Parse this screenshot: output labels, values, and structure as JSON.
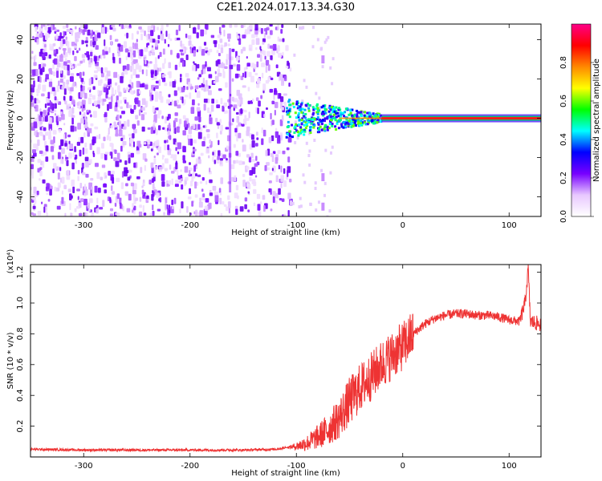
{
  "title": "C2E1.2024.017.13.34.G30",
  "chart_data": [
    {
      "type": "heatmap",
      "xlabel": "Height of straight line (km)",
      "ylabel": "Frequency (Hz)",
      "xlim": [
        -350,
        130
      ],
      "ylim": [
        -50,
        48
      ],
      "xticks": [
        -300,
        -200,
        -100,
        0,
        100
      ],
      "yticks": [
        -40,
        -20,
        0,
        20,
        40
      ],
      "grid": false,
      "colorbar": {
        "label": "Normalized spectral amplitude",
        "range": [
          0,
          1
        ],
        "ticks": [
          "0.0",
          "0.2",
          "0.4",
          "0.6",
          "0.8"
        ],
        "colors": [
          "#ffffff",
          "#e8c8ff",
          "#7700ff",
          "#0000ff",
          "#00ffff",
          "#00ff00",
          "#ffff00",
          "#ff8800",
          "#ff0000",
          "#ff0088"
        ]
      },
      "features": {
        "noise_extent_x": [
          -350,
          -105
        ],
        "signal_frequency_hz": 0,
        "signal_onset_x": -110,
        "strong_signal_from_x": -20
      }
    },
    {
      "type": "line",
      "xlabel": "Height of straight line (km)",
      "ylabel": "SNR (10 * v/v)",
      "scale_label": "(x10⁴)",
      "xlim": [
        -350,
        130
      ],
      "ylim": [
        0,
        1.25
      ],
      "xticks": [
        -300,
        -200,
        -100,
        0,
        100
      ],
      "yticks": [
        "0.2",
        "0.4",
        "0.6",
        "0.8",
        "1.0",
        "1.2"
      ],
      "grid": false,
      "series": [
        {
          "color": "#ee3333",
          "x": [
            -350,
            -300,
            -250,
            -200,
            -150,
            -120,
            -100,
            -90,
            -80,
            -70,
            -60,
            -50,
            -40,
            -30,
            -20,
            -10,
            0,
            10,
            20,
            30,
            40,
            50,
            60,
            70,
            80,
            90,
            100,
            110,
            115,
            118,
            120,
            125,
            130
          ],
          "y": [
            0.05,
            0.045,
            0.045,
            0.045,
            0.045,
            0.05,
            0.07,
            0.09,
            0.13,
            0.18,
            0.25,
            0.36,
            0.45,
            0.52,
            0.6,
            0.66,
            0.72,
            0.8,
            0.86,
            0.9,
            0.92,
            0.93,
            0.93,
            0.92,
            0.92,
            0.91,
            0.89,
            0.88,
            1.0,
            1.22,
            0.88,
            0.87,
            0.86
          ]
        }
      ]
    }
  ]
}
